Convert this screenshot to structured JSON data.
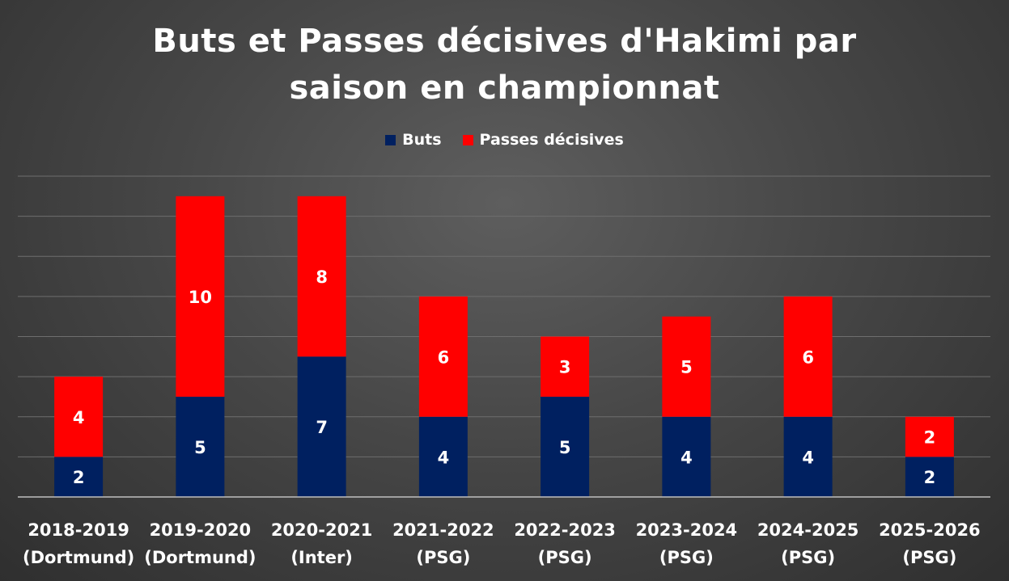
{
  "chart_data": {
    "type": "bar",
    "stacked": true,
    "title_lines": [
      "Buts et Passes décisives d'Hakimi par",
      "saison en championnat"
    ],
    "legend_position": "top",
    "categories": [
      [
        "2018-2019",
        "(Dortmund)"
      ],
      [
        "2019-2020",
        "(Dortmund)"
      ],
      [
        "2020-2021",
        "(Inter)"
      ],
      [
        "2021-2022",
        "(PSG)"
      ],
      [
        "2022-2023",
        "(PSG)"
      ],
      [
        "2023-2024",
        "(PSG)"
      ],
      [
        "2024-2025",
        "(PSG)"
      ],
      [
        "2025-2026",
        "(PSG)"
      ]
    ],
    "series": [
      {
        "name": "Buts",
        "color": "#002060",
        "values": [
          2,
          5,
          7,
          4,
          5,
          4,
          4,
          2
        ]
      },
      {
        "name": "Passes décisives",
        "color": "#ff0000",
        "values": [
          4,
          10,
          8,
          6,
          3,
          5,
          6,
          2
        ]
      }
    ],
    "ylim": [
      0,
      16
    ],
    "gridlines": true,
    "y_axis_labels_shown": false
  }
}
